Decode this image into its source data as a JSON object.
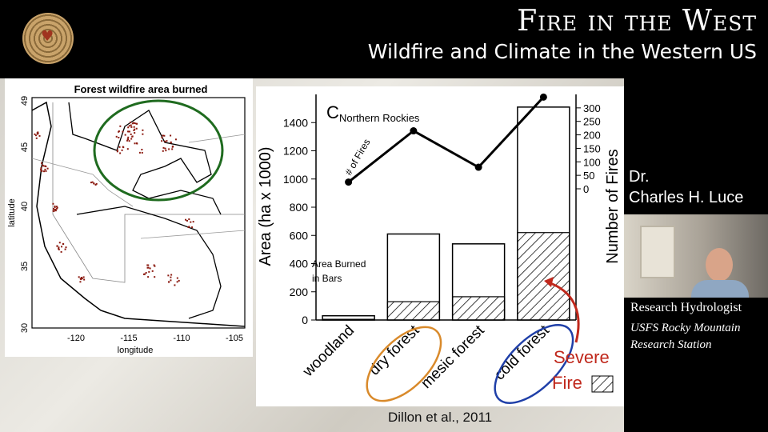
{
  "header": {
    "title": "Fire in the West",
    "subtitle": "Wildfire and Climate in the Western US"
  },
  "map": {
    "title": "Forest wildfire area burned",
    "xlabel": "longitude",
    "ylabel": "latitude",
    "xticks": [
      "-120",
      "-115",
      "-110",
      "-105"
    ],
    "yticks": [
      "30",
      "35",
      "40",
      "45",
      "49"
    ]
  },
  "chart_data": {
    "type": "bar",
    "panel_label": "C",
    "title": "Northern Rockies",
    "categories": [
      "woodland",
      "dry forest",
      "mesic forest",
      "cold forest"
    ],
    "series": [
      {
        "name": "Area Burned in Bars",
        "values": [
          30,
          610,
          540,
          1510
        ]
      },
      {
        "name": "Severe Fire",
        "values": [
          5,
          130,
          165,
          620
        ]
      }
    ],
    "line": {
      "name": "# of Fires",
      "values": [
        25,
        215,
        80,
        340
      ]
    },
    "ylabel": "Area (ha x 1000)",
    "ylim": [
      0,
      1600
    ],
    "yticks": [
      "0",
      "200",
      "400",
      "600",
      "800",
      "1000",
      "1200",
      "1400"
    ],
    "y2label": "Number of Fires",
    "y2ticks": [
      "0",
      "50",
      "100",
      "150",
      "200",
      "250",
      "300"
    ],
    "annotations": {
      "fires": "# of Fires",
      "area_line1": "Area Burned",
      "area_line2": "in Bars",
      "severe_line1": "Severe",
      "severe_line2": "Fire"
    },
    "colors": {
      "dry": "#d98a2b",
      "cold": "#1f3fa8",
      "arrow": "#c0281c"
    }
  },
  "citation": "Dillon et al., 2011",
  "speaker": {
    "line1": "Dr.",
    "line2": "Charles H. Luce",
    "role": "Research Hydrologist",
    "org_line1": "USFS Rocky Mountain",
    "org_line2": "Research Station"
  }
}
